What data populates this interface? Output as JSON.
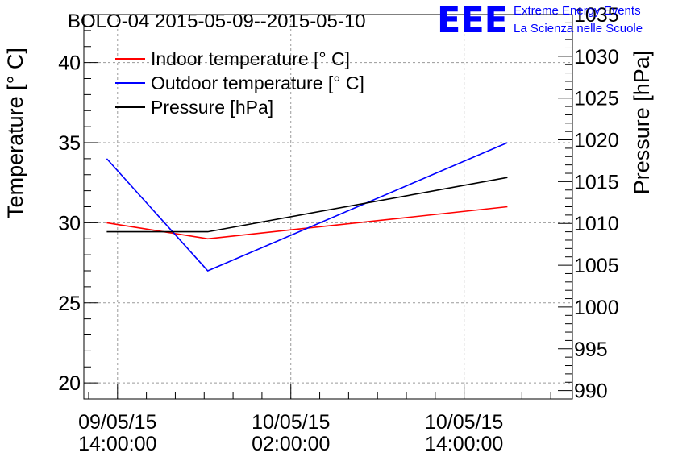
{
  "chart_data": {
    "type": "line",
    "title": "BOLO-04 2015-05-09--2015-05-10",
    "y_left_label": "Temperature [° C]",
    "y_right_label": "Pressure [hPa]",
    "y_left_lim": [
      19,
      43
    ],
    "y_right_lim": [
      989,
      1035
    ],
    "y_left_ticks": [
      20,
      25,
      30,
      35,
      40
    ],
    "y_right_ticks": [
      990,
      995,
      1000,
      1005,
      1010,
      1015,
      1020,
      1025,
      1030,
      1035
    ],
    "x_lim": [
      "2015-05-09 11:40",
      "2015-05-10 21:30"
    ],
    "x_ticks": [
      {
        "x": "2015-05-09 14:00",
        "date": "09/05/15",
        "time": "14:00:00"
      },
      {
        "x": "2015-05-10 02:00",
        "date": "10/05/15",
        "time": "02:00:00"
      },
      {
        "x": "2015-05-10 14:00",
        "date": "10/05/15",
        "time": "14:00:00"
      }
    ],
    "grid": true,
    "legend_position": "top-left",
    "series": [
      {
        "name": "Indoor temperature [° C]",
        "axis": "left",
        "color": "#ff0000",
        "x": [
          "2015-05-09 13:15",
          "2015-05-09 20:15",
          "2015-05-10 17:00"
        ],
        "y": [
          30.0,
          29.0,
          31.0
        ]
      },
      {
        "name": "Outdoor temperature [° C]",
        "axis": "left",
        "color": "#0000ff",
        "x": [
          "2015-05-09 13:15",
          "2015-05-09 20:15",
          "2015-05-10 17:00"
        ],
        "y": [
          34.0,
          27.0,
          35.0
        ]
      },
      {
        "name": "Pressure [hPa]",
        "axis": "right",
        "color": "#000000",
        "x": [
          "2015-05-09 13:15",
          "2015-05-09 20:15",
          "2015-05-10 17:00"
        ],
        "y": [
          1009.0,
          1009.0,
          1015.5
        ]
      }
    ]
  },
  "logo": {
    "mark": "EEE",
    "line1": "Extreme Energy Events",
    "line2": "La Scienza nelle Scuole",
    "color": "#0000ff"
  }
}
